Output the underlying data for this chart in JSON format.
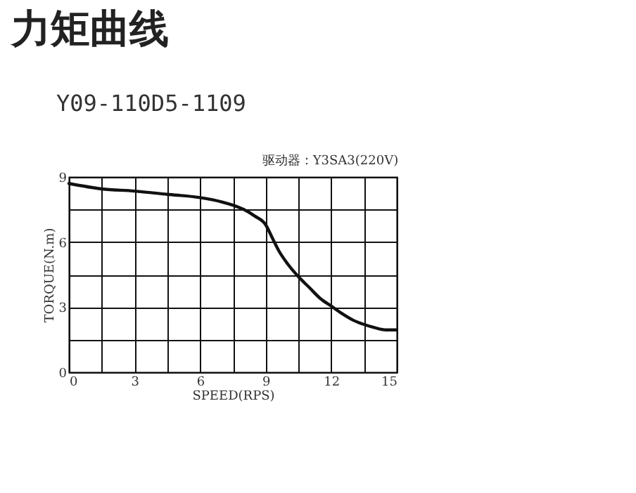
{
  "chart_data": {
    "type": "line",
    "title": "力矩曲线",
    "subtitle": "Y09-110D5-1109",
    "xlabel": "SPEED(RPS)",
    "ylabel": "TORQUE(N.m)",
    "annotations": [
      "驱动器：Y3SA3(220V)"
    ],
    "x": [
      0,
      1.5,
      3,
      4.5,
      6,
      7,
      7.5,
      8,
      8.5,
      9,
      9.3,
      9.6,
      10,
      10.5,
      11,
      11.5,
      12,
      12.5,
      13,
      13.5,
      14,
      14.5,
      15
    ],
    "series": [
      {
        "color": "#111111",
        "values": [
          8.7,
          8.45,
          8.35,
          8.2,
          8.05,
          7.85,
          7.7,
          7.5,
          7.2,
          6.8,
          6.2,
          5.6,
          5.0,
          4.4,
          3.9,
          3.4,
          3.05,
          2.7,
          2.4,
          2.2,
          2.05,
          1.95,
          1.95
        ]
      }
    ],
    "xlim": [
      0,
      15
    ],
    "ylim": [
      0,
      9
    ],
    "xticks": [
      0,
      {
        "value": 1.5,
        "label": null
      },
      3,
      {
        "value": 4.5,
        "label": null
      },
      6,
      {
        "value": 7.5,
        "label": null
      },
      9,
      {
        "value": 10.5,
        "label": null
      },
      12,
      {
        "value": 13.5,
        "label": null
      },
      15
    ],
    "yticks": [
      0,
      {
        "value": 1.5,
        "label": null
      },
      3,
      {
        "value": 4.5,
        "label": null
      },
      6,
      {
        "value": 7.5,
        "label": null
      },
      9
    ],
    "grid": true,
    "legend": false,
    "marker": "none",
    "line_style": "solid"
  }
}
